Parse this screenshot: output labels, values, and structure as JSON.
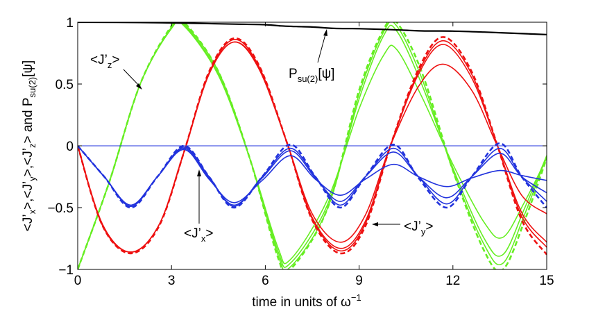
{
  "chart_data": {
    "type": "line",
    "xlabel_main": "time in units of ω",
    "xlabel_sup": "−1",
    "ylabel": {
      "p1": "<J’",
      "p1s": "x",
      "p2": ">,<J’",
      "p2s": "y",
      "p3": ">,<J’",
      "p3s": "z",
      "p4": "> and P",
      "p4s": "su(2)",
      "p5": "[ψ]"
    },
    "xlim": [
      0,
      15
    ],
    "ylim": [
      -1,
      1
    ],
    "xticks": [
      0,
      3,
      6,
      9,
      12,
      15
    ],
    "xtick_labels": [
      "0",
      "3",
      "6",
      "9",
      "12",
      "15"
    ],
    "yticks": [
      -1,
      -0.5,
      0,
      0.5,
      1
    ],
    "ytick_labels": [
      "−1",
      "−0.5",
      "0",
      "0.5",
      "1"
    ],
    "grid": false,
    "colors": {
      "jz": "#66ee22",
      "jy": "#ee1111",
      "jx": "#2233dd",
      "p": "#000000"
    },
    "annotations": {
      "jz": {
        "text": "<J’",
        "sub": "z",
        "close": ">"
      },
      "jx": {
        "text": "<J’",
        "sub": "x",
        "close": ">"
      },
      "jy": {
        "text": "<J’",
        "sub": "y",
        "close": ">"
      },
      "p": {
        "text": "P",
        "sub": "su(2)",
        "close": "[ψ]"
      }
    },
    "series": [
      {
        "family": "jz",
        "style": "dashed",
        "points": [
          [
            0,
            -1
          ],
          [
            1,
            -0.3
          ],
          [
            2,
            0.5
          ],
          [
            3,
            0.97
          ],
          [
            3.4,
            1
          ],
          [
            4.5,
            0.6
          ],
          [
            5.5,
            -0.1
          ],
          [
            6.4,
            -0.9
          ],
          [
            6.8,
            -1
          ],
          [
            8,
            -0.5
          ],
          [
            9,
            0.45
          ],
          [
            9.8,
            0.95
          ],
          [
            10.2,
            1
          ],
          [
            11,
            0.6
          ],
          [
            12,
            -0.2
          ],
          [
            13,
            -0.85
          ],
          [
            13.6,
            -1
          ],
          [
            14.3,
            -0.6
          ],
          [
            15,
            -0.1
          ]
        ]
      },
      {
        "family": "jz",
        "style": "solid",
        "points": [
          [
            0,
            -1
          ],
          [
            1,
            -0.3
          ],
          [
            2,
            0.5
          ],
          [
            3,
            0.96
          ],
          [
            3.4,
            0.99
          ],
          [
            4.5,
            0.6
          ],
          [
            5.5,
            -0.1
          ],
          [
            6.4,
            -0.88
          ],
          [
            6.8,
            -0.98
          ],
          [
            8,
            -0.5
          ],
          [
            9,
            0.42
          ],
          [
            9.8,
            0.93
          ],
          [
            10.2,
            0.97
          ],
          [
            11,
            0.55
          ],
          [
            12,
            -0.2
          ],
          [
            13,
            -0.8
          ],
          [
            13.6,
            -0.95
          ],
          [
            14.3,
            -0.55
          ],
          [
            15,
            -0.08
          ]
        ]
      },
      {
        "family": "jz",
        "style": "solid",
        "points": [
          [
            0,
            -1
          ],
          [
            1,
            -0.3
          ],
          [
            2,
            0.5
          ],
          [
            3,
            0.95
          ],
          [
            3.4,
            0.98
          ],
          [
            4.5,
            0.58
          ],
          [
            5.5,
            -0.1
          ],
          [
            6.4,
            -0.85
          ],
          [
            6.8,
            -0.95
          ],
          [
            8,
            -0.47
          ],
          [
            9,
            0.38
          ],
          [
            9.8,
            0.9
          ],
          [
            10.2,
            0.93
          ],
          [
            11,
            0.5
          ],
          [
            12,
            -0.18
          ],
          [
            13,
            -0.75
          ],
          [
            13.6,
            -0.88
          ],
          [
            14.3,
            -0.5
          ],
          [
            15,
            -0.08
          ]
        ]
      },
      {
        "family": "jz",
        "style": "solid",
        "points": [
          [
            0,
            -1
          ],
          [
            1,
            -0.3
          ],
          [
            2,
            0.5
          ],
          [
            3,
            0.95
          ],
          [
            3.4,
            0.97
          ],
          [
            4.5,
            0.57
          ],
          [
            5.5,
            -0.1
          ],
          [
            6.4,
            -0.82
          ],
          [
            6.8,
            -0.92
          ],
          [
            8,
            -0.43
          ],
          [
            9,
            0.3
          ],
          [
            9.8,
            0.74
          ],
          [
            10.2,
            0.78
          ],
          [
            11,
            0.4
          ],
          [
            12,
            -0.15
          ],
          [
            13,
            -0.62
          ],
          [
            13.6,
            -0.74
          ],
          [
            14.3,
            -0.45
          ],
          [
            15,
            -0.1
          ]
        ]
      },
      {
        "family": "jy",
        "style": "dashed",
        "points": [
          [
            0,
            0
          ],
          [
            0.8,
            -0.65
          ],
          [
            1.7,
            -0.87
          ],
          [
            2.6,
            -0.65
          ],
          [
            3.4,
            -0.05
          ],
          [
            4.2,
            0.6
          ],
          [
            5,
            0.87
          ],
          [
            5.8,
            0.65
          ],
          [
            6.7,
            0.02
          ],
          [
            7.5,
            -0.6
          ],
          [
            8.4,
            -0.87
          ],
          [
            9.2,
            -0.65
          ],
          [
            10,
            0
          ],
          [
            10.9,
            0.62
          ],
          [
            11.7,
            0.88
          ],
          [
            12.6,
            0.6
          ],
          [
            13.4,
            0.02
          ],
          [
            14.2,
            -0.6
          ],
          [
            15,
            -0.88
          ]
        ]
      },
      {
        "family": "jy",
        "style": "solid",
        "points": [
          [
            0,
            0
          ],
          [
            0.8,
            -0.65
          ],
          [
            1.7,
            -0.86
          ],
          [
            2.6,
            -0.64
          ],
          [
            3.4,
            -0.05
          ],
          [
            4.2,
            0.59
          ],
          [
            5,
            0.86
          ],
          [
            5.8,
            0.64
          ],
          [
            6.7,
            0.02
          ],
          [
            7.5,
            -0.59
          ],
          [
            8.4,
            -0.85
          ],
          [
            9.2,
            -0.63
          ],
          [
            10,
            0
          ],
          [
            10.9,
            0.6
          ],
          [
            11.7,
            0.85
          ],
          [
            12.6,
            0.58
          ],
          [
            13.4,
            0.02
          ],
          [
            14.2,
            -0.57
          ],
          [
            15,
            -0.82
          ]
        ]
      },
      {
        "family": "jy",
        "style": "solid",
        "points": [
          [
            0,
            0
          ],
          [
            0.8,
            -0.64
          ],
          [
            1.7,
            -0.86
          ],
          [
            2.6,
            -0.64
          ],
          [
            3.4,
            -0.05
          ],
          [
            4.2,
            0.58
          ],
          [
            5,
            0.84
          ],
          [
            5.8,
            0.63
          ],
          [
            6.7,
            0.02
          ],
          [
            7.5,
            -0.58
          ],
          [
            8.4,
            -0.83
          ],
          [
            9.2,
            -0.61
          ],
          [
            10,
            0
          ],
          [
            10.9,
            0.58
          ],
          [
            11.7,
            0.82
          ],
          [
            12.6,
            0.55
          ],
          [
            13.4,
            0.02
          ],
          [
            14.2,
            -0.54
          ],
          [
            15,
            -0.78
          ]
        ]
      },
      {
        "family": "jy",
        "style": "solid",
        "points": [
          [
            0,
            0
          ],
          [
            0.8,
            -0.64
          ],
          [
            1.7,
            -0.86
          ],
          [
            2.6,
            -0.64
          ],
          [
            3.4,
            -0.05
          ],
          [
            4.2,
            0.58
          ],
          [
            5,
            0.84
          ],
          [
            5.8,
            0.62
          ],
          [
            6.7,
            0.02
          ],
          [
            7.5,
            -0.55
          ],
          [
            8.4,
            -0.78
          ],
          [
            9.2,
            -0.56
          ],
          [
            10,
            0
          ],
          [
            10.9,
            0.48
          ],
          [
            11.7,
            0.66
          ],
          [
            12.6,
            0.45
          ],
          [
            13.4,
            0.01
          ],
          [
            14.2,
            -0.4
          ],
          [
            15,
            -0.55
          ]
        ]
      },
      {
        "family": "jx",
        "style": "dashed",
        "points": [
          [
            0,
            0
          ],
          [
            0.85,
            -0.25
          ],
          [
            1.7,
            -0.5
          ],
          [
            2.55,
            -0.25
          ],
          [
            3.4,
            0
          ],
          [
            4.2,
            -0.25
          ],
          [
            5,
            -0.5
          ],
          [
            5.9,
            -0.25
          ],
          [
            6.8,
            0.01
          ],
          [
            7.6,
            -0.25
          ],
          [
            8.4,
            -0.5
          ],
          [
            9.2,
            -0.25
          ],
          [
            10.1,
            0.01
          ],
          [
            10.9,
            -0.26
          ],
          [
            11.8,
            -0.5
          ],
          [
            12.6,
            -0.25
          ],
          [
            13.5,
            0.02
          ],
          [
            14.2,
            -0.25
          ],
          [
            15,
            -0.5
          ]
        ]
      },
      {
        "family": "jx",
        "style": "solid",
        "points": [
          [
            0,
            0
          ],
          [
            0.85,
            -0.25
          ],
          [
            1.7,
            -0.49
          ],
          [
            2.55,
            -0.25
          ],
          [
            3.4,
            -0.01
          ],
          [
            4.2,
            -0.25
          ],
          [
            5,
            -0.49
          ],
          [
            5.9,
            -0.25
          ],
          [
            6.8,
            -0.02
          ],
          [
            7.6,
            -0.25
          ],
          [
            8.4,
            -0.48
          ],
          [
            9.2,
            -0.25
          ],
          [
            10.1,
            -0.02
          ],
          [
            10.9,
            -0.25
          ],
          [
            11.8,
            -0.47
          ],
          [
            12.6,
            -0.25
          ],
          [
            13.5,
            -0.02
          ],
          [
            14.2,
            -0.25
          ],
          [
            15,
            -0.45
          ]
        ]
      },
      {
        "family": "jx",
        "style": "solid",
        "points": [
          [
            0,
            0
          ],
          [
            0.85,
            -0.25
          ],
          [
            1.7,
            -0.48
          ],
          [
            2.55,
            -0.25
          ],
          [
            3.4,
            -0.02
          ],
          [
            4.2,
            -0.26
          ],
          [
            5,
            -0.48
          ],
          [
            5.9,
            -0.26
          ],
          [
            6.8,
            -0.04
          ],
          [
            7.6,
            -0.26
          ],
          [
            8.4,
            -0.45
          ],
          [
            9.2,
            -0.25
          ],
          [
            10.1,
            -0.05
          ],
          [
            10.9,
            -0.25
          ],
          [
            11.8,
            -0.42
          ],
          [
            12.6,
            -0.25
          ],
          [
            13.5,
            -0.06
          ],
          [
            14.2,
            -0.25
          ],
          [
            15,
            -0.38
          ]
        ]
      },
      {
        "family": "jx",
        "style": "solid",
        "points": [
          [
            0,
            0
          ],
          [
            0.85,
            -0.25
          ],
          [
            1.7,
            -0.48
          ],
          [
            2.55,
            -0.25
          ],
          [
            3.4,
            -0.03
          ],
          [
            4.2,
            -0.27
          ],
          [
            5,
            -0.46
          ],
          [
            5.9,
            -0.28
          ],
          [
            6.8,
            -0.08
          ],
          [
            7.6,
            -0.27
          ],
          [
            8.4,
            -0.4
          ],
          [
            9.2,
            -0.27
          ],
          [
            10.1,
            -0.15
          ],
          [
            10.9,
            -0.25
          ],
          [
            11.8,
            -0.33
          ],
          [
            12.6,
            -0.26
          ],
          [
            13.5,
            -0.2
          ],
          [
            14.2,
            -0.24
          ],
          [
            15,
            -0.28
          ]
        ]
      },
      {
        "family": "p",
        "style": "solid",
        "points": [
          [
            0,
            1
          ],
          [
            2,
            0.998
          ],
          [
            4,
            0.99
          ],
          [
            5,
            0.985
          ],
          [
            6,
            0.98
          ],
          [
            6.5,
            0.97
          ],
          [
            7,
            0.965
          ],
          [
            7.6,
            0.96
          ],
          [
            8.2,
            0.95
          ],
          [
            9,
            0.948
          ],
          [
            10,
            0.94
          ],
          [
            11,
            0.93
          ],
          [
            12,
            0.928
          ],
          [
            13,
            0.92
          ],
          [
            14,
            0.91
          ],
          [
            15,
            0.9
          ]
        ]
      },
      {
        "family": "zero",
        "style": "solid",
        "points": [
          [
            0,
            0
          ],
          [
            15,
            0
          ]
        ]
      }
    ]
  }
}
